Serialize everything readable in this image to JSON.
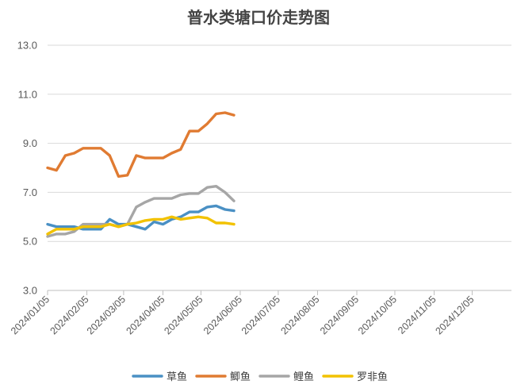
{
  "chart_data": {
    "type": "line",
    "title": "普水类塘口价走势图",
    "xlabel": "",
    "ylabel": "",
    "ylim": [
      3.0,
      13.0
    ],
    "y_ticks": [
      "3.0",
      "5.0",
      "7.0",
      "9.0",
      "11.0",
      "13.0"
    ],
    "x_ticks": [
      "2024/01/05",
      "2024/02/05",
      "2024/03/05",
      "2024/04/05",
      "2024/05/05",
      "2024/06/05",
      "2024/07/05",
      "2024/08/05",
      "2024/09/05",
      "2024/10/05",
      "2024/11/05",
      "2024/12/05"
    ],
    "grid": "horizontal",
    "legend_position": "bottom",
    "x_dates": [
      "2024/01/05",
      "2024/01/12",
      "2024/01/19",
      "2024/01/26",
      "2024/02/02",
      "2024/02/09",
      "2024/02/16",
      "2024/02/23",
      "2024/03/01",
      "2024/03/08",
      "2024/03/15",
      "2024/03/22",
      "2024/03/29",
      "2024/04/05",
      "2024/04/12",
      "2024/04/19",
      "2024/04/26",
      "2024/05/03",
      "2024/05/10",
      "2024/05/17",
      "2024/05/24",
      "2024/05/31",
      "2024/06/07"
    ],
    "series": [
      {
        "name": "草鱼",
        "color": "#4a90c4",
        "values": [
          5.7,
          5.6,
          5.6,
          5.6,
          5.5,
          5.5,
          5.5,
          5.9,
          5.7,
          5.7,
          5.6,
          5.5,
          5.8,
          5.7,
          5.9,
          6.0,
          6.2,
          6.2,
          6.4,
          6.45,
          6.3,
          6.25,
          null
        ]
      },
      {
        "name": "鲫鱼",
        "color": "#e07b32",
        "values": [
          8.0,
          7.9,
          8.5,
          8.6,
          8.8,
          8.8,
          8.8,
          8.5,
          7.65,
          7.7,
          8.5,
          8.4,
          8.4,
          8.4,
          8.6,
          8.75,
          9.5,
          9.5,
          9.8,
          10.2,
          10.25,
          10.15,
          null
        ]
      },
      {
        "name": "鲤鱼",
        "color": "#a6a6a6",
        "values": [
          5.2,
          5.3,
          5.3,
          5.4,
          5.7,
          5.7,
          5.7,
          5.7,
          5.6,
          5.7,
          6.4,
          6.6,
          6.75,
          6.75,
          6.75,
          6.9,
          6.95,
          6.95,
          7.2,
          7.25,
          7.0,
          6.65,
          null
        ]
      },
      {
        "name": "罗非鱼",
        "color": "#f2c200",
        "values": [
          5.3,
          5.5,
          5.5,
          5.5,
          5.6,
          5.6,
          5.6,
          5.7,
          5.6,
          5.7,
          5.75,
          5.85,
          5.9,
          5.9,
          6.0,
          5.9,
          5.95,
          6.0,
          5.95,
          5.75,
          5.75,
          5.7,
          null
        ]
      }
    ]
  }
}
